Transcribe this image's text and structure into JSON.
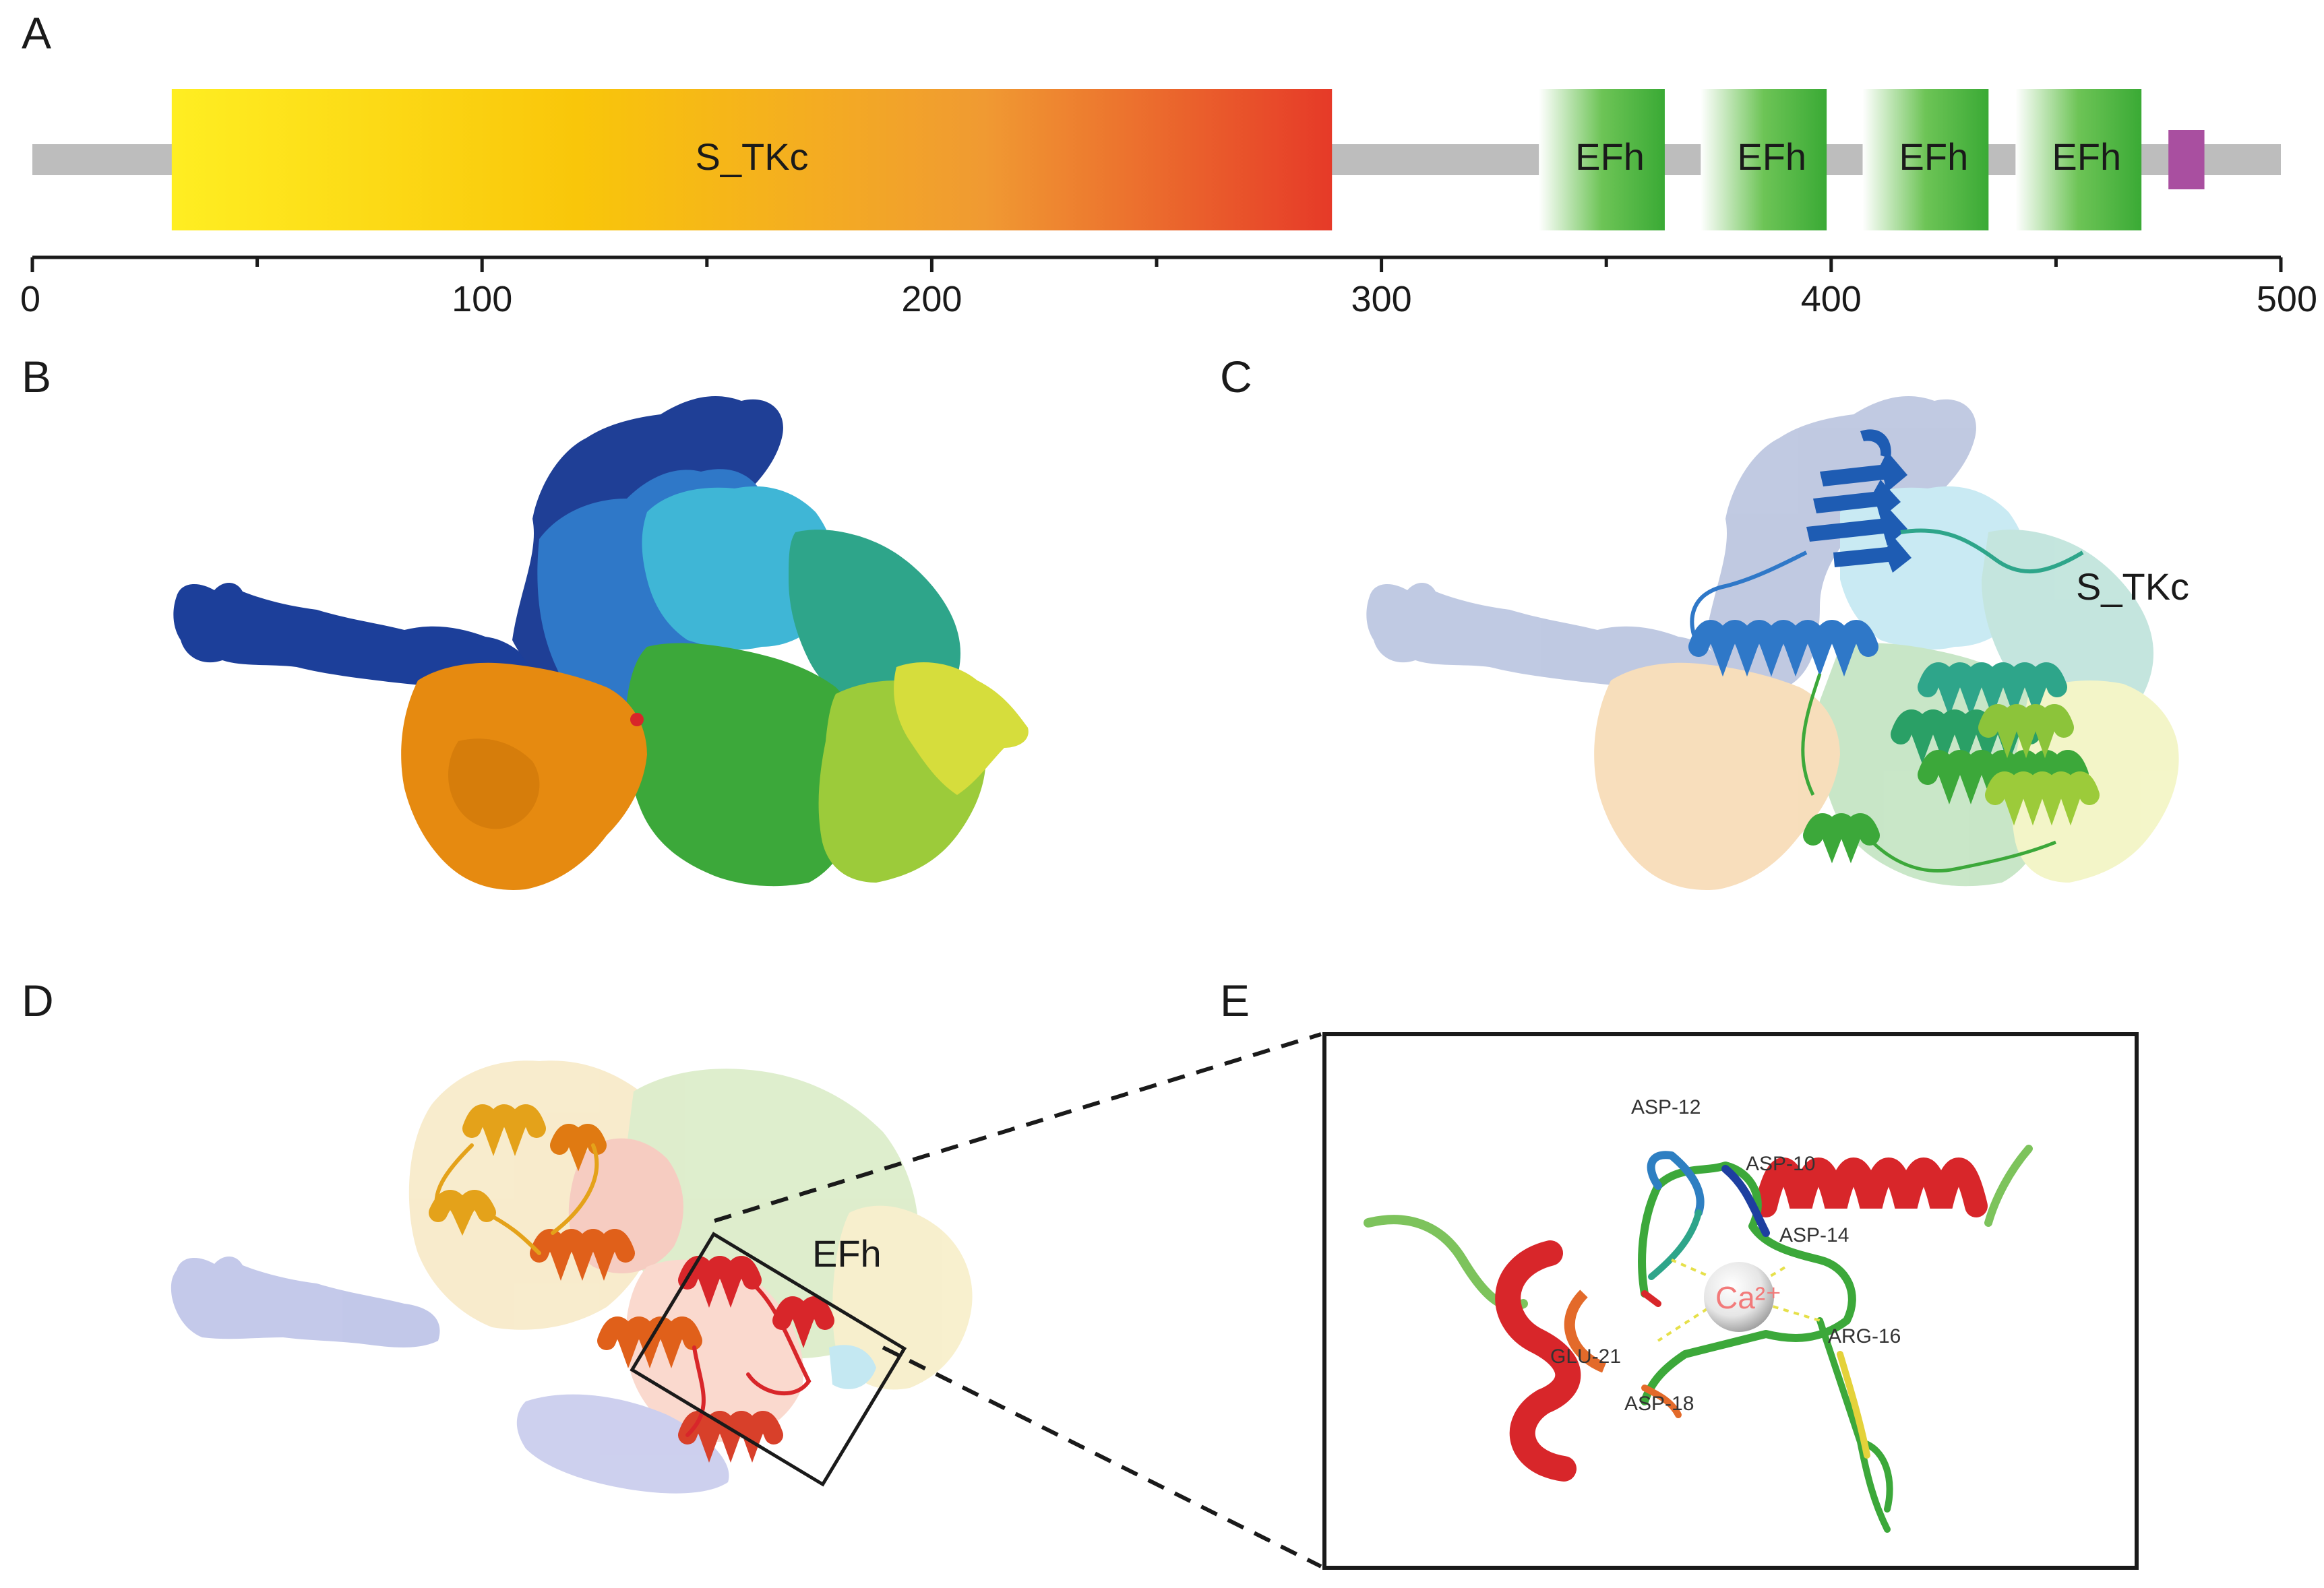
{
  "panels": {
    "a": "A",
    "b": "B",
    "c": "C",
    "d": "D",
    "e": "E"
  },
  "domain_map": {
    "axis": {
      "min": 0,
      "max": 500,
      "major_ticks": [
        0,
        100,
        200,
        300,
        400,
        500
      ],
      "minor_ticks": [
        50,
        150,
        250,
        350,
        450
      ],
      "tick_labels": [
        "0",
        "100",
        "200",
        "300",
        "400",
        "500"
      ]
    },
    "protein_length": 500,
    "domains": [
      {
        "label": "S_TKc",
        "start": 31,
        "end": 289,
        "colors": [
          "#FFEE22",
          "#F9C60A",
          "#F09A32",
          "#E63A28"
        ]
      },
      {
        "label": "EFh",
        "start": 335,
        "end": 363,
        "colors": [
          "#FFFFFF",
          "#6DC456",
          "#3AAA35"
        ]
      },
      {
        "label": "EFh",
        "start": 371,
        "end": 399,
        "colors": [
          "#FFFFFF",
          "#6DC456",
          "#3AAA35"
        ]
      },
      {
        "label": "EFh",
        "start": 407,
        "end": 435,
        "colors": [
          "#FFFFFF",
          "#6DC456",
          "#3AAA35"
        ]
      },
      {
        "label": "EFh",
        "start": 441,
        "end": 469,
        "colors": [
          "#FFFFFF",
          "#6DC456",
          "#3AAA35"
        ]
      }
    ],
    "motif": {
      "start": 475,
      "end": 483,
      "color": "#A94FA0"
    },
    "backbone_color": "#BDBDBD"
  },
  "structure_labels": {
    "c_domain": "S_TKc",
    "d_domain": "EFh"
  },
  "binding_site": {
    "ion": "Ca²⁺",
    "residues": [
      "ASP-12",
      "ASP-10",
      "ASP-14",
      "ARG-16",
      "GLU-21",
      "ASP-18"
    ]
  },
  "colors": {
    "rainbow_dark_blue": "#1C3F9A",
    "rainbow_blue": "#2F78C8",
    "rainbow_cyan": "#3FB6D6",
    "rainbow_teal": "#2EA58A",
    "rainbow_green": "#3CA83A",
    "rainbow_lime": "#9CCB3A",
    "rainbow_yellow": "#E4E44A",
    "rainbow_orange": "#E68A10",
    "helix_red": "#D8262A"
  }
}
